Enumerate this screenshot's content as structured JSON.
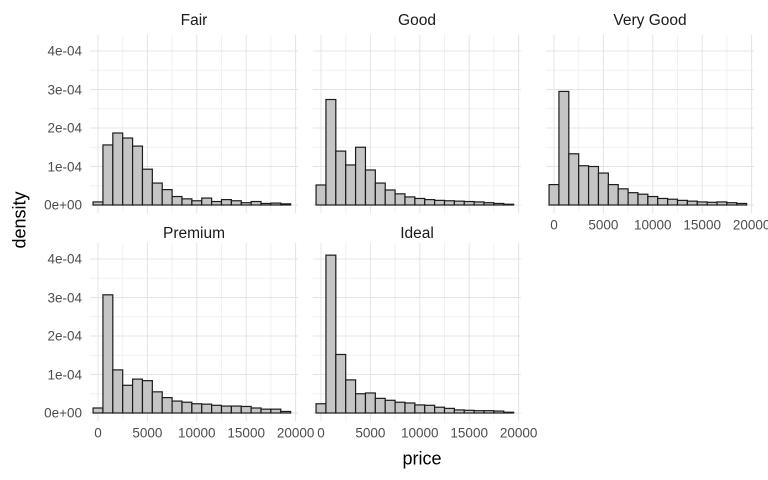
{
  "figure": {
    "background": "#ffffff",
    "colors": {
      "bar_fill": "#c5c5c5",
      "bar_stroke": "#1c1c1c",
      "grid_major": "#e4e4e4",
      "grid_minor": "#f1f1f1",
      "tick_text": "#4d4d4d",
      "strip_text": "#1a1a1a",
      "title_text": "#000000"
    }
  },
  "chart_data": {
    "type": "bar",
    "subtype": "faceted-density-histogram",
    "title": "",
    "xlabel": "price",
    "ylabel": "density",
    "legend": "none",
    "grid": "on",
    "x_ticks": [
      0,
      5000,
      10000,
      15000,
      20000
    ],
    "x_tick_labels": [
      "0",
      "5000",
      "10000",
      "15000",
      "20000"
    ],
    "x_minor_ticks": [
      2500,
      7500,
      12500,
      17500
    ],
    "xlim": [
      -1000,
      21000
    ],
    "y_ticks_e4": [
      0,
      1,
      2,
      3,
      4
    ],
    "y_tick_labels": [
      "0e+00",
      "1e-04",
      "2e-04",
      "3e-04",
      "4e-04"
    ],
    "y_minor_ticks_e4": [
      0.5,
      1.5,
      2.5,
      3.5
    ],
    "ylim_e4": [
      0,
      4.4
    ],
    "density_unit": "1e-04",
    "bin_width": 1000,
    "bin_centers": [
      0,
      1000,
      2000,
      3000,
      4000,
      5000,
      6000,
      7000,
      8000,
      9000,
      10000,
      11000,
      12000,
      13000,
      14000,
      15000,
      16000,
      17000,
      18000,
      19000
    ],
    "facets": [
      {
        "label": "Fair",
        "grid_pos": {
          "row": 0,
          "col": 0
        },
        "show_x_labels": false,
        "densities_e4": [
          0.08,
          1.56,
          1.87,
          1.74,
          1.53,
          0.93,
          0.57,
          0.4,
          0.22,
          0.16,
          0.11,
          0.18,
          0.09,
          0.14,
          0.11,
          0.06,
          0.09,
          0.04,
          0.05,
          0.03
        ]
      },
      {
        "label": "Good",
        "grid_pos": {
          "row": 0,
          "col": 1
        },
        "show_x_labels": false,
        "densities_e4": [
          0.52,
          2.74,
          1.4,
          1.04,
          1.5,
          0.91,
          0.57,
          0.39,
          0.29,
          0.21,
          0.17,
          0.14,
          0.12,
          0.11,
          0.1,
          0.09,
          0.08,
          0.06,
          0.04,
          0.02
        ]
      },
      {
        "label": "Very Good",
        "grid_pos": {
          "row": 0,
          "col": 2
        },
        "show_x_labels": true,
        "densities_e4": [
          0.53,
          2.95,
          1.33,
          1.02,
          1.0,
          0.83,
          0.53,
          0.42,
          0.32,
          0.28,
          0.22,
          0.17,
          0.15,
          0.12,
          0.1,
          0.08,
          0.07,
          0.08,
          0.06,
          0.04
        ]
      },
      {
        "label": "Premium",
        "grid_pos": {
          "row": 1,
          "col": 0
        },
        "show_x_labels": true,
        "densities_e4": [
          0.13,
          3.07,
          1.12,
          0.72,
          0.88,
          0.84,
          0.55,
          0.4,
          0.31,
          0.28,
          0.24,
          0.23,
          0.2,
          0.18,
          0.18,
          0.17,
          0.13,
          0.1,
          0.1,
          0.04
        ]
      },
      {
        "label": "Ideal",
        "grid_pos": {
          "row": 1,
          "col": 1
        },
        "show_x_labels": true,
        "densities_e4": [
          0.24,
          4.1,
          1.52,
          0.86,
          0.5,
          0.52,
          0.38,
          0.33,
          0.28,
          0.26,
          0.21,
          0.2,
          0.15,
          0.12,
          0.08,
          0.07,
          0.06,
          0.06,
          0.05,
          0.02
        ]
      }
    ]
  }
}
